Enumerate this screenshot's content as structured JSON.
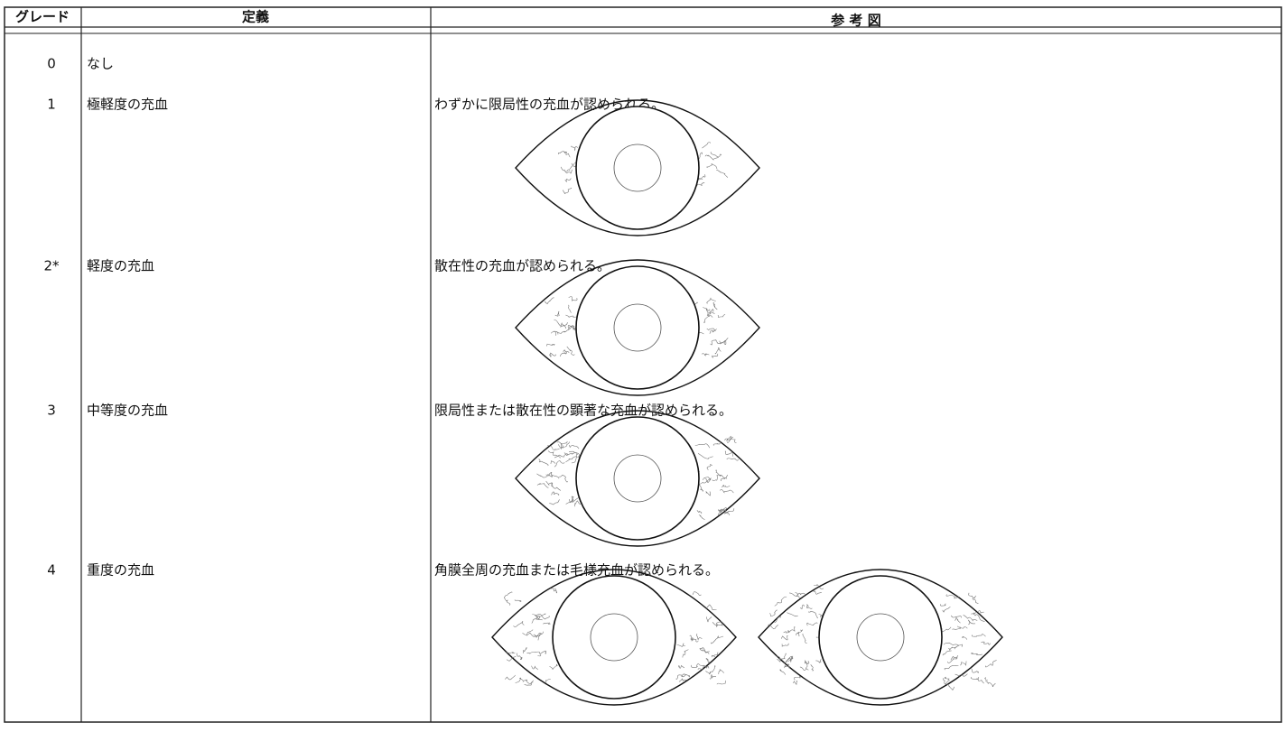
{
  "table": {
    "header": [
      "グレード",
      "定義",
      "参 考 図"
    ],
    "rows": [
      {
        "grade": "0",
        "definition": "なし"
      },
      {
        "grade": "1",
        "definition": "極軽度の充血",
        "description": "わずかに限局性の充血が認められる。"
      },
      {
        "grade": "2*",
        "definition": "軽度の充血",
        "description": "散在性の充血が認められる。"
      },
      {
        "grade": "3",
        "definition": "中等度の充血",
        "description": "限局性または散在性の顕著な充血が認められる。"
      },
      {
        "grade": "4",
        "definition": "重度の充血",
        "description": "角膜全周の充血または毛様充血が認められる。"
      }
    ]
  }
}
